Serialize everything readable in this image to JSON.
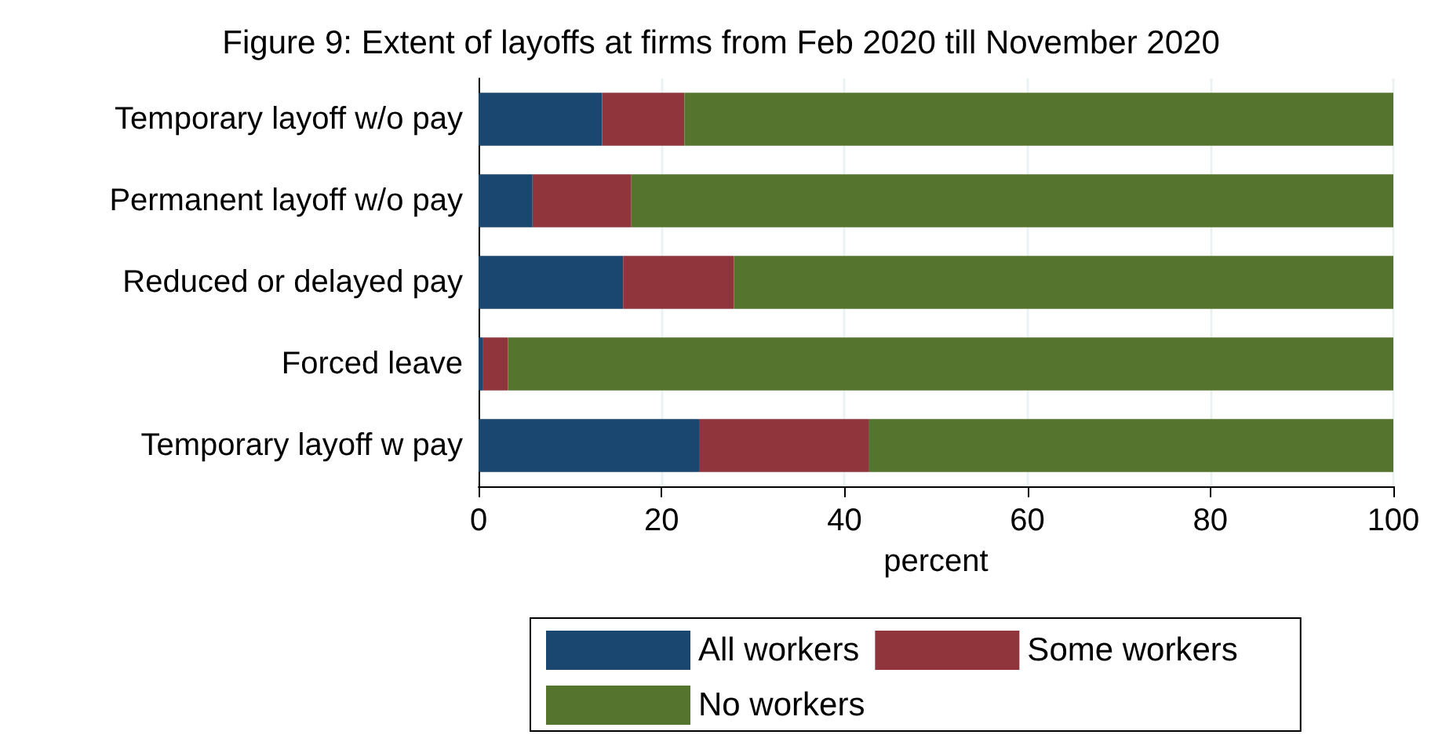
{
  "chart_data": {
    "type": "bar",
    "orientation": "horizontal",
    "stacked": true,
    "title": "Figure 9: Extent of layoffs at firms from Feb 2020 till November 2020",
    "xlabel": "percent",
    "categories": [
      "Temporary layoff w/o pay",
      "Permanent layoff w/o pay",
      "Reduced or delayed pay",
      "Forced leave",
      "Temporary layoff w pay"
    ],
    "series": [
      {
        "name": "All workers",
        "color": "#1a476f",
        "values": [
          13.5,
          5.9,
          15.8,
          0.5,
          24.1
        ]
      },
      {
        "name": "Some workers",
        "color": "#90353b",
        "values": [
          9.0,
          10.8,
          12.1,
          2.7,
          18.6
        ]
      },
      {
        "name": "No workers",
        "color": "#55752f",
        "values": [
          77.5,
          83.3,
          72.1,
          96.8,
          57.3
        ]
      }
    ],
    "xlim": [
      0,
      100
    ],
    "xticks": [
      0,
      20,
      40,
      60,
      80,
      100
    ],
    "grid": "x",
    "legend": "bottom"
  }
}
